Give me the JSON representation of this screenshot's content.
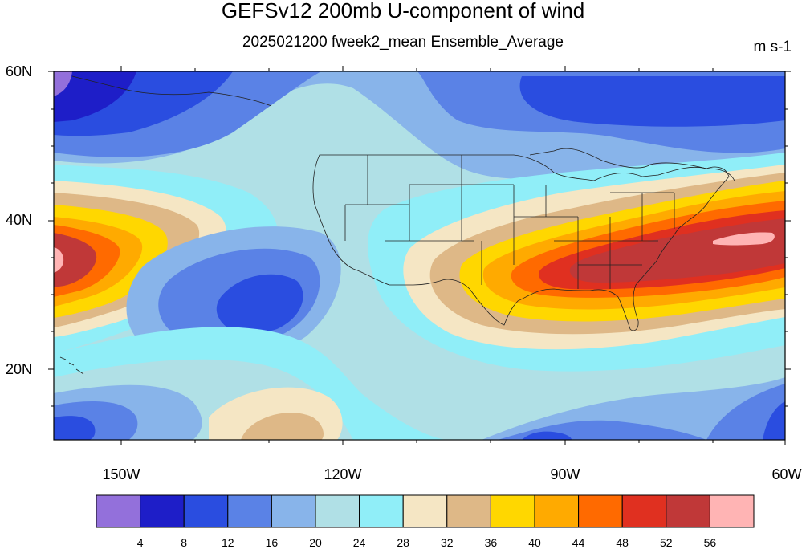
{
  "title": "GEFSv12 200mb U-component of wind",
  "subtitle": "2025021200 fweek2_mean Ensemble_Average",
  "units": "m s-1",
  "lat_labels": [
    "60N",
    "40N",
    "20N"
  ],
  "lon_labels": [
    "150W",
    "120W",
    "90W",
    "60W"
  ],
  "colorbar": {
    "colors": [
      "#9370db",
      "#1e1ec8",
      "#2a4de0",
      "#5a82e6",
      "#88b4ea",
      "#b0e0e6",
      "#90eef8",
      "#f5e6c4",
      "#deb887",
      "#ffd700",
      "#ffaa00",
      "#ff6a00",
      "#e03020",
      "#c03838",
      "#ffb4b4"
    ],
    "levels": [
      "4",
      "8",
      "12",
      "16",
      "20",
      "24",
      "28",
      "32",
      "36",
      "40",
      "44",
      "48",
      "52",
      "56"
    ]
  }
}
